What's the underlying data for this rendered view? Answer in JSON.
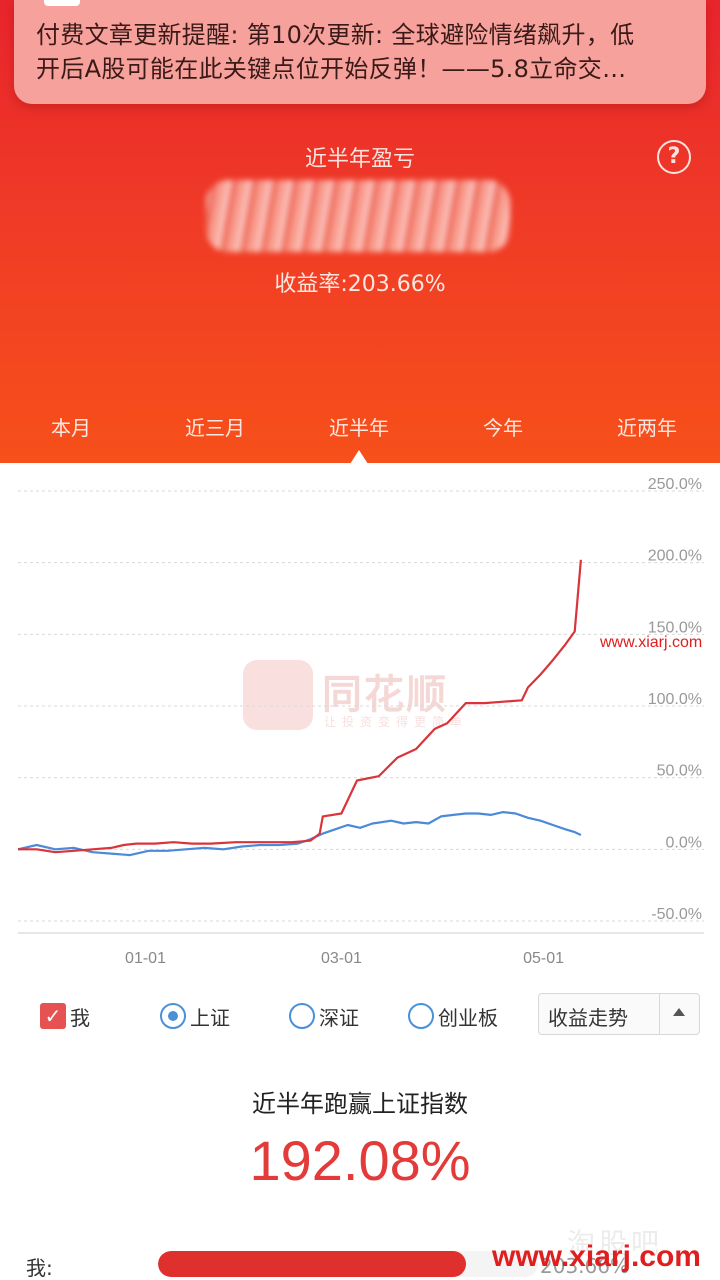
{
  "notification": {
    "line1": "付费文章更新提醒: 第10次更新: 全球避险情绪飙升，低",
    "line2": "开后A股可能在此关键点位开始反弹！——5.8立命交…"
  },
  "summary": {
    "period_title": "近半年盈亏",
    "return_rate": "收益率:203.66%",
    "help_icon": "?"
  },
  "tabs": [
    {
      "label": "本月",
      "active": false
    },
    {
      "label": "近三月",
      "active": false
    },
    {
      "label": "近半年",
      "active": true
    },
    {
      "label": "今年",
      "active": false
    },
    {
      "label": "近两年",
      "active": false
    }
  ],
  "watermark": {
    "brand": "同花顺",
    "sub": "让投资变得更简单",
    "site_mid": "www.xiarj.com",
    "site_bottom": "www.xiarj.com",
    "ghost": "淘股吧"
  },
  "chart_data": {
    "type": "line",
    "y_ticks": [
      "250.0%",
      "200.0%",
      "150.0%",
      "100.0%",
      "50.0%",
      "0.0%",
      "-50.0%"
    ],
    "ylim": [
      -50,
      250
    ],
    "x_ticks": [
      {
        "label": "01-01",
        "x": 0.205
      },
      {
        "label": "03-01",
        "x": 0.52
      },
      {
        "label": "05-01",
        "x": 0.845
      }
    ],
    "x_domain": [
      0,
      1
    ],
    "grid": true,
    "series": [
      {
        "name": "我",
        "color": "#d9343a",
        "points": [
          [
            0,
            0
          ],
          [
            0.03,
            0
          ],
          [
            0.06,
            -2
          ],
          [
            0.09,
            -1
          ],
          [
            0.12,
            0
          ],
          [
            0.15,
            1
          ],
          [
            0.17,
            3
          ],
          [
            0.19,
            4
          ],
          [
            0.22,
            4
          ],
          [
            0.25,
            5
          ],
          [
            0.28,
            4
          ],
          [
            0.31,
            4
          ],
          [
            0.35,
            5
          ],
          [
            0.4,
            5
          ],
          [
            0.44,
            5
          ],
          [
            0.47,
            6
          ],
          [
            0.485,
            11
          ],
          [
            0.49,
            23
          ],
          [
            0.52,
            25
          ],
          [
            0.545,
            48
          ],
          [
            0.58,
            51
          ],
          [
            0.61,
            64
          ],
          [
            0.64,
            70
          ],
          [
            0.67,
            84
          ],
          [
            0.69,
            88
          ],
          [
            0.72,
            102
          ],
          [
            0.75,
            102
          ],
          [
            0.78,
            103
          ],
          [
            0.81,
            104
          ],
          [
            0.82,
            113
          ],
          [
            0.84,
            122
          ],
          [
            0.86,
            132
          ],
          [
            0.88,
            143
          ],
          [
            0.895,
            152
          ],
          [
            0.905,
            202
          ]
        ]
      },
      {
        "name": "上证",
        "color": "#4a8ad9",
        "points": [
          [
            0,
            0
          ],
          [
            0.03,
            3
          ],
          [
            0.06,
            0
          ],
          [
            0.09,
            1
          ],
          [
            0.12,
            -2
          ],
          [
            0.15,
            -3
          ],
          [
            0.18,
            -4
          ],
          [
            0.21,
            -1
          ],
          [
            0.24,
            -1
          ],
          [
            0.27,
            0
          ],
          [
            0.3,
            1
          ],
          [
            0.33,
            0
          ],
          [
            0.36,
            2
          ],
          [
            0.39,
            3
          ],
          [
            0.42,
            3
          ],
          [
            0.45,
            4
          ],
          [
            0.47,
            7
          ],
          [
            0.49,
            11
          ],
          [
            0.51,
            14
          ],
          [
            0.53,
            17
          ],
          [
            0.55,
            15
          ],
          [
            0.57,
            18
          ],
          [
            0.6,
            20
          ],
          [
            0.62,
            18
          ],
          [
            0.64,
            19
          ],
          [
            0.66,
            18
          ],
          [
            0.68,
            23
          ],
          [
            0.7,
            24
          ],
          [
            0.72,
            25
          ],
          [
            0.74,
            25
          ],
          [
            0.76,
            24
          ],
          [
            0.78,
            26
          ],
          [
            0.8,
            25
          ],
          [
            0.82,
            22
          ],
          [
            0.84,
            20
          ],
          [
            0.86,
            17
          ],
          [
            0.88,
            14
          ],
          [
            0.895,
            12
          ],
          [
            0.905,
            10
          ]
        ]
      }
    ]
  },
  "legend": {
    "me": "我",
    "sh": "上证",
    "sz": "深证",
    "cyb": "创业板",
    "select_value": "收益走势"
  },
  "outperform": {
    "title": "近半年跑赢上证指数",
    "value": "192.08%"
  },
  "bars": {
    "label": "我:",
    "value": "203.66%",
    "fill_fraction": 0.81
  }
}
